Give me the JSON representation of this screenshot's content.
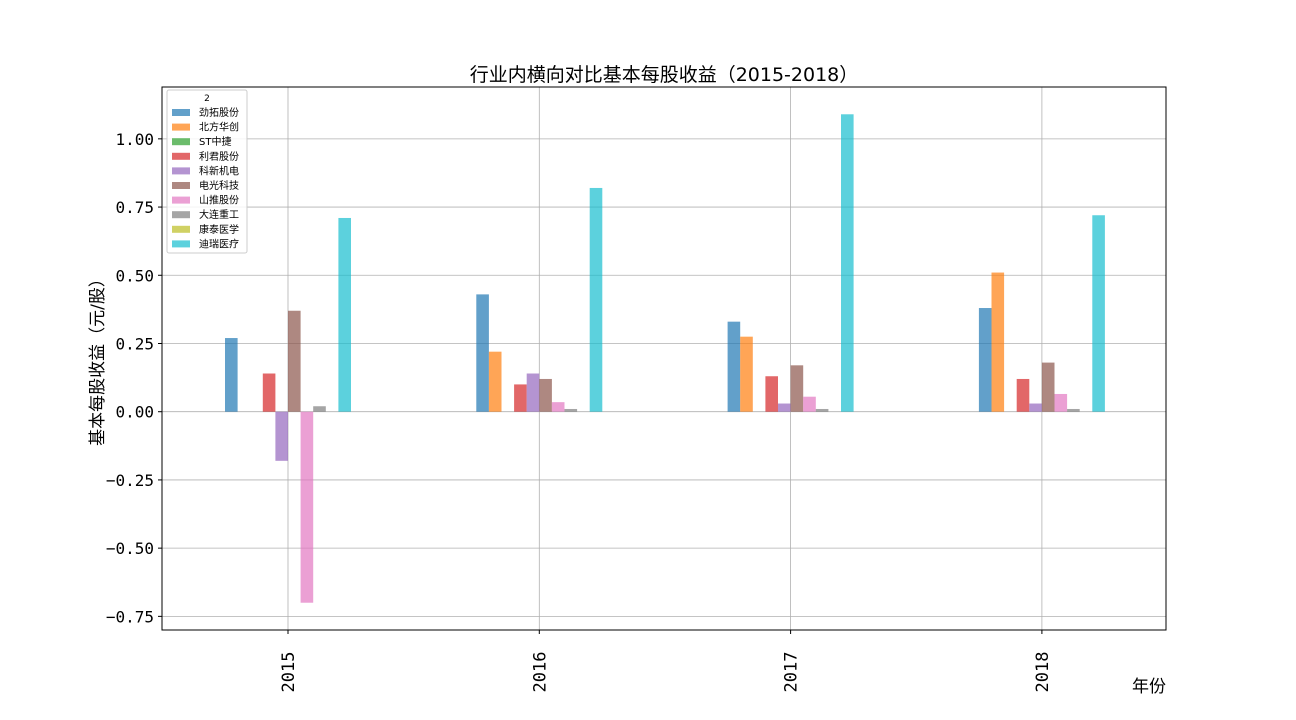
{
  "chart_data": {
    "type": "bar",
    "title": "行业内横向对比基本每股收益（2015-2018）",
    "xlabel": "年份",
    "ylabel": "基本每股收益（元/股）",
    "categories": [
      "2015",
      "2016",
      "2017",
      "2018"
    ],
    "ylim": [
      -0.8,
      1.19
    ],
    "yticks": [
      -0.75,
      -0.5,
      -0.25,
      0.0,
      0.25,
      0.5,
      0.75,
      1.0
    ],
    "ytick_labels": [
      "−0.75",
      "−0.50",
      "−0.25",
      "0.00",
      "0.25",
      "0.50",
      "0.75",
      "1.00"
    ],
    "grid": true,
    "legend": {
      "title": "2",
      "placement": "top-left"
    },
    "series": [
      {
        "name": "劲拓股份",
        "color": "#1f77b4",
        "values": [
          0.27,
          0.43,
          0.33,
          0.38
        ]
      },
      {
        "name": "北方华创",
        "color": "#ff7f0e",
        "values": [
          0.0,
          0.22,
          0.275,
          0.51
        ]
      },
      {
        "name": "ST中捷",
        "color": "#2ca02c",
        "values": [
          0.0,
          0.0,
          0.0,
          0.0
        ]
      },
      {
        "name": "利君股份",
        "color": "#d62728",
        "values": [
          0.14,
          0.1,
          0.13,
          0.12
        ]
      },
      {
        "name": "科新机电",
        "color": "#9467bd",
        "values": [
          -0.18,
          0.14,
          0.03,
          0.03
        ]
      },
      {
        "name": "电光科技",
        "color": "#8c564b",
        "values": [
          0.37,
          0.12,
          0.17,
          0.18
        ]
      },
      {
        "name": "山推股份",
        "color": "#e377c2",
        "values": [
          -0.7,
          0.035,
          0.055,
          0.065
        ]
      },
      {
        "name": "大连重工",
        "color": "#7f7f7f",
        "values": [
          0.02,
          0.01,
          0.01,
          0.01
        ]
      },
      {
        "name": "康泰医学",
        "color": "#bcbd22",
        "values": [
          0.0,
          0.0,
          0.0,
          0.0
        ]
      },
      {
        "name": "迪瑞医疗",
        "color": "#17becf",
        "values": [
          0.71,
          0.82,
          1.09,
          0.72
        ]
      }
    ]
  }
}
